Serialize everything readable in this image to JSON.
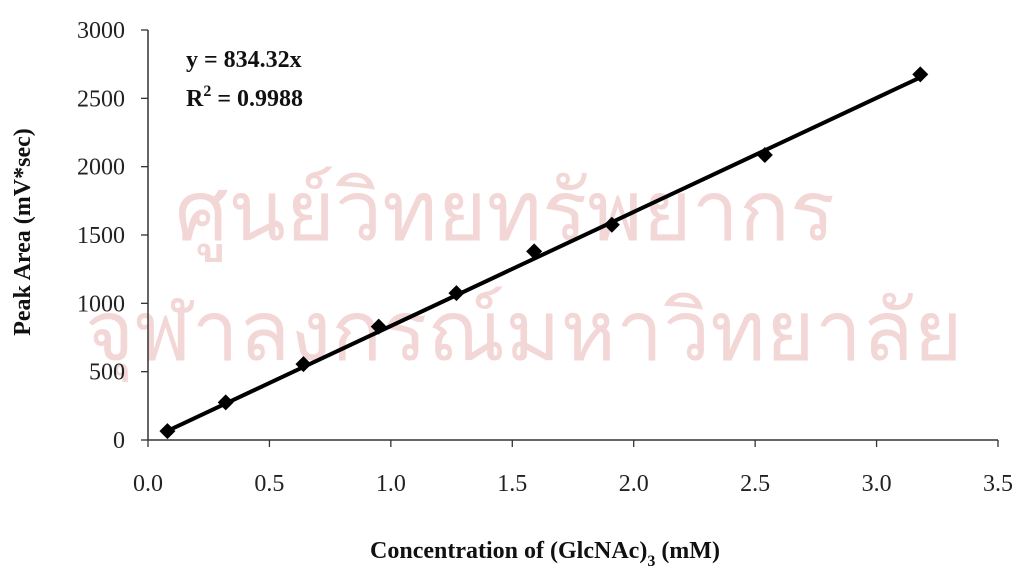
{
  "watermark": {
    "line1": "ศูนย์วิทยทรัพยากร",
    "line2": "จุฬาลงกรณ์มหาวิทยาลัย"
  },
  "chart_data": {
    "type": "scatter",
    "xlabel_main": "Concentration of (GlcNAc)",
    "xlabel_sub": "3",
    "xlabel_unit": " (mM)",
    "ylabel": "Peak Area (mV*sec)",
    "xlim": [
      0.0,
      3.5
    ],
    "ylim": [
      0,
      3000
    ],
    "x_ticks": [
      "0.0",
      "0.5",
      "1.0",
      "1.5",
      "2.0",
      "2.5",
      "3.0",
      "3.5"
    ],
    "x_tick_values": [
      0.0,
      0.5,
      1.0,
      1.5,
      2.0,
      2.5,
      3.0,
      3.5
    ],
    "y_ticks": [
      "0",
      "500",
      "1000",
      "1500",
      "2000",
      "2500",
      "3000"
    ],
    "y_tick_values": [
      0,
      500,
      1000,
      1500,
      2000,
      2500,
      3000
    ],
    "grid": false,
    "legend": "none",
    "marker_color": "#000000",
    "line_color": "#000000",
    "series": [
      {
        "points": [
          {
            "x": 0.08,
            "y": 65
          },
          {
            "x": 0.32,
            "y": 275
          },
          {
            "x": 0.64,
            "y": 555
          },
          {
            "x": 0.95,
            "y": 830
          },
          {
            "x": 1.27,
            "y": 1075
          },
          {
            "x": 1.59,
            "y": 1380
          },
          {
            "x": 1.91,
            "y": 1575
          },
          {
            "x": 2.54,
            "y": 2085
          },
          {
            "x": 3.18,
            "y": 2675
          }
        ]
      }
    ],
    "trendline": {
      "slope": 834.32,
      "x_start": 0.08,
      "x_end": 3.18
    },
    "annotation": {
      "equation": "y = 834.32x",
      "r2_prefix": "R",
      "r2_sup": "2",
      "r2_value": " = 0.9988"
    }
  }
}
